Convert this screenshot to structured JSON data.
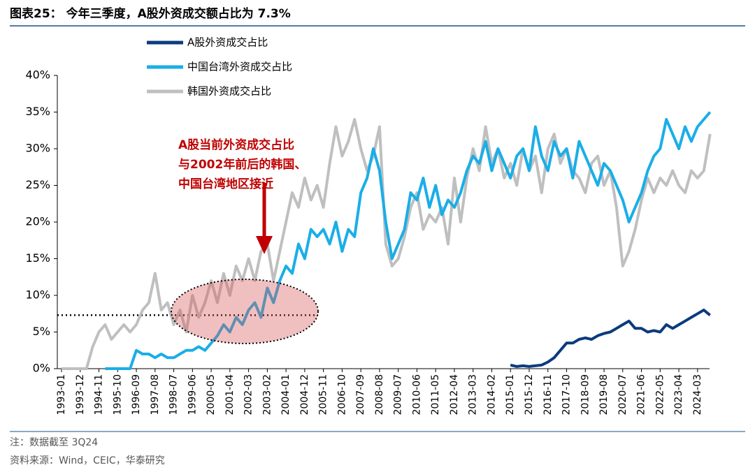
{
  "chart_data": {
    "type": "line",
    "title": "图表25：  今年三季度，A股外资成交额占比为 7.3%",
    "categories": [
      "1993-01",
      null,
      null,
      "1993-12",
      null,
      null,
      "1994-11",
      null,
      null,
      "1995-10",
      null,
      null,
      "1996-09",
      null,
      null,
      "1997-08",
      null,
      null,
      "1998-07",
      null,
      null,
      "1999-06",
      null,
      null,
      "2000-05",
      null,
      null,
      "2001-04",
      null,
      null,
      "2002-03",
      null,
      null,
      "2003-02",
      null,
      null,
      "2004-01",
      null,
      null,
      "2004-12",
      null,
      null,
      "2005-11",
      null,
      null,
      "2006-10",
      null,
      null,
      "2007-09",
      null,
      null,
      "2008-08",
      null,
      null,
      "2009-07",
      null,
      null,
      "2010-06",
      null,
      null,
      "2011-05",
      null,
      null,
      "2012-04",
      null,
      null,
      "2013-03",
      null,
      null,
      "2014-02",
      null,
      null,
      "2015-01",
      null,
      null,
      "2015-12",
      null,
      null,
      "2016-11",
      null,
      null,
      "2017-10",
      null,
      null,
      "2018-09",
      null,
      null,
      "2019-08",
      null,
      null,
      "2020-07",
      null,
      null,
      "2021-06",
      null,
      null,
      "2022-05",
      null,
      null,
      "2023-04",
      null,
      null,
      "2024-03",
      null,
      null
    ],
    "series": [
      {
        "name": "A股外资成交占比",
        "color": "#0b3a7e",
        "values": [
          null,
          null,
          null,
          null,
          null,
          null,
          null,
          null,
          null,
          null,
          null,
          null,
          null,
          null,
          null,
          null,
          null,
          null,
          null,
          null,
          null,
          null,
          null,
          null,
          null,
          null,
          null,
          null,
          null,
          null,
          null,
          null,
          null,
          null,
          null,
          null,
          null,
          null,
          null,
          null,
          null,
          null,
          null,
          null,
          null,
          null,
          null,
          null,
          null,
          null,
          null,
          null,
          null,
          null,
          null,
          null,
          null,
          null,
          null,
          null,
          null,
          null,
          null,
          null,
          null,
          null,
          null,
          null,
          null,
          null,
          null,
          null,
          0.5,
          0.3,
          0.4,
          0.3,
          0.4,
          0.5,
          0.9,
          1.5,
          2.5,
          3.5,
          3.5,
          4,
          4.2,
          4,
          4.5,
          4.8,
          5,
          5.5,
          6,
          6.5,
          5.5,
          5.5,
          5,
          5.2,
          5,
          6,
          5.5,
          6,
          6.5,
          7,
          7.5,
          8,
          7.3
        ]
      },
      {
        "name": "中国台湾外资成交占比",
        "color": "#1aaee8",
        "values": [
          null,
          null,
          null,
          null,
          null,
          null,
          null,
          0,
          0,
          0,
          0,
          0,
          2.5,
          2,
          2,
          1.5,
          2,
          1.5,
          1.5,
          2,
          2.5,
          2.5,
          3,
          2.5,
          3.5,
          4.5,
          6,
          5,
          7,
          6,
          8,
          9,
          7,
          11,
          9,
          12,
          14,
          13,
          17,
          15,
          19,
          18,
          19,
          17,
          20,
          16,
          19,
          18,
          24,
          26,
          30,
          27,
          20,
          15,
          17,
          19,
          24,
          23,
          26,
          22,
          25,
          21,
          23,
          22,
          24,
          27,
          29,
          28,
          31,
          27,
          30,
          28,
          26,
          29,
          30,
          27,
          33,
          29,
          27,
          31,
          29,
          30,
          26,
          31,
          29,
          27,
          25,
          28,
          27,
          25,
          23,
          20,
          22,
          24,
          27,
          29,
          30,
          34,
          32,
          30,
          33,
          31,
          33,
          34,
          35
        ]
      },
      {
        "name": "韩国外资成交占比",
        "color": "#bfbfbf",
        "values": [
          0,
          0,
          0,
          0,
          0,
          3,
          5,
          6,
          4,
          5,
          6,
          5,
          6,
          8,
          9,
          13,
          8,
          9,
          6,
          8,
          5,
          10,
          7,
          9,
          12,
          9,
          13,
          10,
          14,
          12,
          15,
          12,
          16,
          17,
          12,
          16,
          20,
          24,
          22,
          26,
          23,
          25,
          22,
          28,
          33,
          29,
          31,
          34,
          30,
          27,
          29,
          33,
          17,
          14,
          15,
          18,
          22,
          24,
          19,
          21,
          20,
          22,
          17,
          26,
          20,
          26,
          30,
          27,
          33,
          28,
          30,
          26,
          28,
          25,
          30,
          27,
          29,
          24,
          30,
          32,
          28,
          30,
          27,
          26,
          24,
          28,
          29,
          25,
          27,
          22,
          14,
          16,
          19,
          23,
          26,
          24,
          26,
          25,
          27,
          25,
          24,
          27,
          26,
          27,
          32
        ]
      }
    ],
    "ylim": [
      0,
      40
    ],
    "yticks": [
      {
        "value": 0,
        "label": "0%"
      },
      {
        "value": 5,
        "label": "5%"
      },
      {
        "value": 10,
        "label": "10%"
      },
      {
        "value": 15,
        "label": "15%"
      },
      {
        "value": 20,
        "label": "20%"
      },
      {
        "value": 25,
        "label": "25%"
      },
      {
        "value": 30,
        "label": "30%"
      },
      {
        "value": 35,
        "label": "35%"
      },
      {
        "value": 40,
        "label": "40%"
      }
    ],
    "reference_line": 7.3,
    "annotation": [
      "A股当前外资成交占比",
      "与2002年前后的韩国、",
      "中国台湾地区接近"
    ],
    "notes": [
      "注：数据截至 3Q24",
      "资料来源：Wind，CEIC，华泰研究"
    ]
  }
}
